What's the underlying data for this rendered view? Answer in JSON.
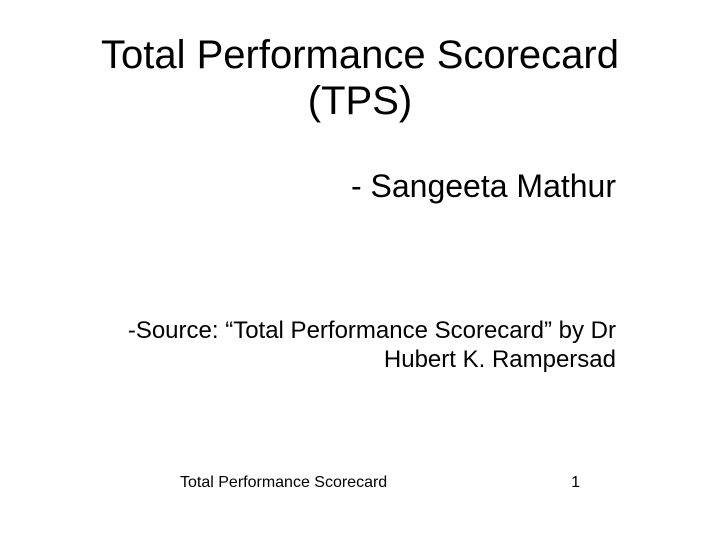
{
  "slide": {
    "title_line1": "Total Performance Scorecard",
    "title_line2": "(TPS)",
    "subtitle": "- Sangeeta Mathur",
    "source_line1": "-Source: “Total Performance Scorecard” by Dr",
    "source_line2": "Hubert K. Rampersad",
    "footer_text": "Total Performance Scorecard",
    "page_number": "1"
  },
  "style": {
    "background_color": "#ffffff",
    "text_color": "#000000",
    "title_fontsize": 40,
    "subtitle_fontsize": 32,
    "source_fontsize": 24,
    "footer_fontsize": 16,
    "font_family": "Arial"
  }
}
